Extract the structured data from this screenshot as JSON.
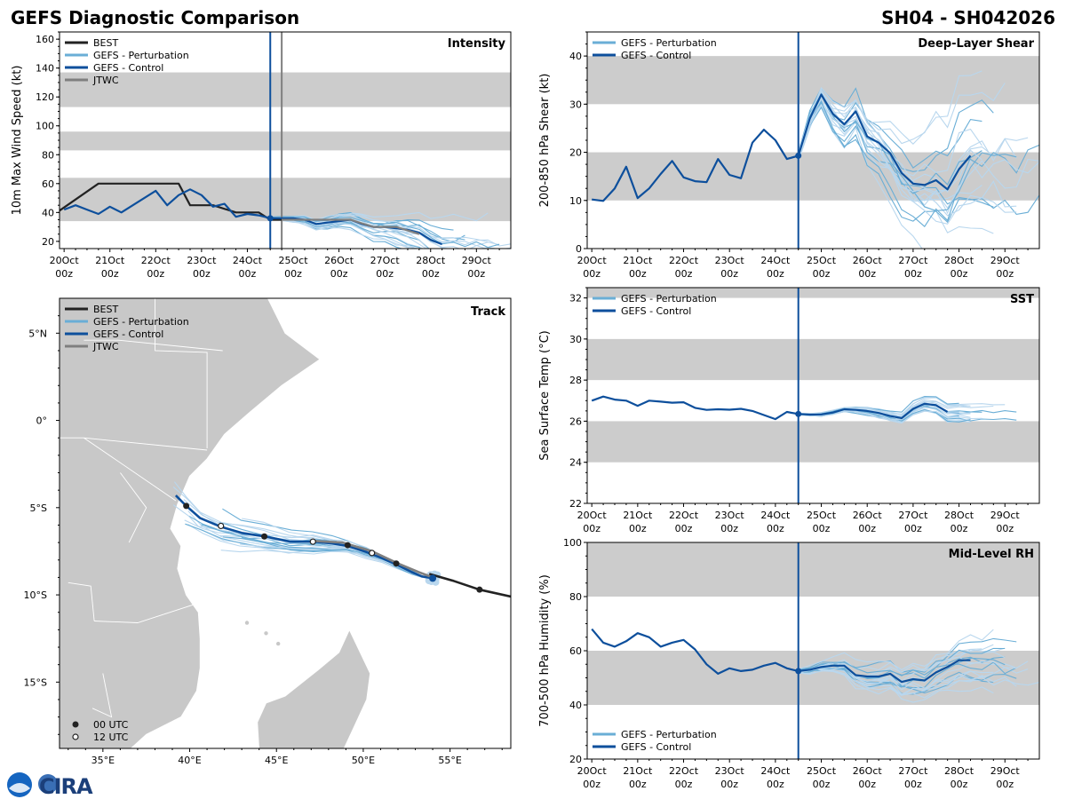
{
  "header": {
    "title": "GEFS Diagnostic Comparison",
    "storm_id": "SH04 - SH042026"
  },
  "logo": {
    "text": "CIRA"
  },
  "colors": {
    "best": "#222222",
    "perturbation": "#6aaed6",
    "perturbation_light": "#b9d7ee",
    "control": "#0d4f9c",
    "jtwc": "#7f7f7f",
    "band": "#cccccc",
    "land": "#c8c8c8",
    "ocean": "#ffffff"
  },
  "time_axis": {
    "day_labels": [
      "20Oct",
      "21Oct",
      "22Oct",
      "23Oct",
      "24Oct",
      "25Oct",
      "26Oct",
      "27Oct",
      "28Oct",
      "29Oct"
    ],
    "hour_label": "00z",
    "init_day": 4.5,
    "jtwc_line_day": 4.75,
    "range_days": [
      -0.1,
      9.75
    ]
  },
  "chart_data": [
    {
      "id": "intensity",
      "type": "line",
      "title": "Intensity",
      "ylabel": "10m Max Wind Speed (kt)",
      "ylim": [
        15,
        165
      ],
      "yticks": [
        20,
        40,
        60,
        80,
        100,
        120,
        140,
        160
      ],
      "bands": [
        [
          34,
          64
        ],
        [
          83,
          96
        ],
        [
          113,
          137
        ]
      ],
      "legend": [
        "BEST",
        "GEFS - Perturbation",
        "GEFS - Control",
        "JTWC"
      ],
      "series": [
        {
          "name": "BEST",
          "days": [
            -0.25,
            0.75,
            1.75,
            2.5,
            2.75,
            3.25,
            3.75,
            4.25,
            4.5,
            4.75
          ],
          "values": [
            38,
            60,
            60,
            60,
            45,
            45,
            40,
            40,
            35,
            35
          ]
        },
        {
          "name": "GEFS - Control",
          "days": [
            0,
            0.25,
            0.5,
            0.75,
            1,
            1.25,
            1.5,
            1.75,
            2,
            2.25,
            2.5,
            2.75,
            3,
            3.25,
            3.5,
            3.75,
            4,
            4.25,
            4.5,
            4.75,
            5,
            5.25,
            5.5,
            5.75,
            6,
            6.25,
            6.5,
            6.75,
            7,
            7.25,
            7.5,
            7.75,
            8,
            8.25
          ],
          "values": [
            42,
            45,
            42,
            39,
            44,
            40,
            45,
            50,
            55,
            45,
            52,
            56,
            52,
            44,
            46,
            37,
            39,
            38,
            36,
            36,
            36,
            35,
            32,
            33,
            34,
            35,
            32,
            30,
            30,
            29,
            28,
            26,
            21,
            18
          ]
        },
        {
          "name": "JTWC",
          "days": [
            4.75,
            5.25,
            5.75,
            6.25,
            6.75,
            7.25,
            7.75
          ],
          "values": [
            35,
            35,
            35,
            35,
            30,
            30,
            25
          ]
        }
      ]
    },
    {
      "id": "shear",
      "type": "line",
      "title": "Deep-Layer Shear",
      "ylabel": "200-850 hPa Shear (kt)",
      "ylim": [
        0,
        45
      ],
      "yticks": [
        0,
        10,
        20,
        30,
        40
      ],
      "bands": [
        [
          10,
          20
        ],
        [
          30,
          40
        ]
      ],
      "legend": [
        "GEFS - Perturbation",
        "GEFS - Control"
      ],
      "series": [
        {
          "name": "GEFS - Control",
          "days": [
            0,
            0.25,
            0.5,
            0.75,
            1,
            1.25,
            1.5,
            1.75,
            2,
            2.25,
            2.5,
            2.75,
            3,
            3.25,
            3.5,
            3.75,
            4,
            4.25,
            4.5,
            4.75,
            5,
            5.25,
            5.5,
            5.75,
            6,
            6.25,
            6.5,
            6.75,
            7,
            7.25,
            7.5,
            7.75,
            8,
            8.25
          ],
          "values": [
            10.2,
            9.9,
            12.5,
            17,
            10.5,
            12.5,
            15.5,
            18.2,
            14.8,
            14,
            13.8,
            18.6,
            15.3,
            14.6,
            22,
            24.7,
            22.5,
            18.6,
            19.3,
            27,
            32,
            28,
            25.8,
            28.5,
            23.3,
            22,
            19.8,
            15.7,
            13.5,
            13.2,
            14.2,
            12.3,
            16.5,
            19.3
          ]
        }
      ]
    },
    {
      "id": "sst",
      "type": "line",
      "title": "SST",
      "ylabel": "Sea Surface Temp (°C)",
      "ylim": [
        22,
        32.5
      ],
      "yticks": [
        22,
        24,
        26,
        28,
        30,
        32
      ],
      "bands": [
        [
          24,
          26
        ],
        [
          28,
          30
        ],
        [
          32,
          34
        ]
      ],
      "legend": [
        "GEFS - Perturbation",
        "GEFS - Control"
      ],
      "series": [
        {
          "name": "GEFS - Control",
          "days": [
            0,
            0.25,
            0.5,
            0.75,
            1,
            1.25,
            1.5,
            1.75,
            2,
            2.25,
            2.5,
            2.75,
            3,
            3.25,
            3.5,
            3.75,
            4,
            4.25,
            4.5,
            4.75,
            5,
            5.25,
            5.5,
            5.75,
            6,
            6.25,
            6.5,
            6.75,
            7,
            7.25,
            7.5,
            7.75
          ],
          "values": [
            27,
            27.2,
            27.05,
            27,
            26.75,
            27,
            26.95,
            26.9,
            26.92,
            26.65,
            26.55,
            26.58,
            26.56,
            26.6,
            26.5,
            26.3,
            26.1,
            26.45,
            26.35,
            26.32,
            26.33,
            26.42,
            26.58,
            26.55,
            26.5,
            26.4,
            26.25,
            26.15,
            26.6,
            26.85,
            26.78,
            26.45
          ]
        }
      ]
    },
    {
      "id": "rh",
      "type": "line",
      "title": "Mid-Level RH",
      "ylabel": "700-500 hPa Humidity (%)",
      "ylim": [
        20,
        100
      ],
      "yticks": [
        20,
        40,
        60,
        80,
        100
      ],
      "bands": [
        [
          40,
          60
        ],
        [
          80,
          100
        ]
      ],
      "legend": [
        "GEFS - Perturbation",
        "GEFS - Control"
      ],
      "series": [
        {
          "name": "GEFS - Control",
          "days": [
            0,
            0.25,
            0.5,
            0.75,
            1,
            1.25,
            1.5,
            1.75,
            2,
            2.25,
            2.5,
            2.75,
            3,
            3.25,
            3.5,
            3.75,
            4,
            4.25,
            4.5,
            4.75,
            5,
            5.25,
            5.5,
            5.75,
            6,
            6.25,
            6.5,
            6.75,
            7,
            7.25,
            7.5,
            7.75,
            8,
            8.25
          ],
          "values": [
            68,
            63,
            61.5,
            63.5,
            66.5,
            65,
            61.5,
            63,
            64,
            60.5,
            55,
            51.5,
            53.5,
            52.5,
            53,
            54.5,
            55.5,
            53.5,
            52.5,
            53,
            54,
            54.5,
            54.5,
            51,
            50.5,
            50.5,
            51.5,
            48.5,
            49.5,
            49,
            52,
            54,
            56.5,
            56.5
          ]
        }
      ]
    },
    {
      "id": "track",
      "type": "scatter",
      "title": "Track",
      "xlim": [
        32.5,
        58.5
      ],
      "ylim": [
        -18.8,
        7
      ],
      "xticks": [
        {
          "value": 35,
          "label": "35°E"
        },
        {
          "value": 40,
          "label": "40°E"
        },
        {
          "value": 45,
          "label": "45°E"
        },
        {
          "value": 50,
          "label": "50°E"
        },
        {
          "value": 55,
          "label": "55°E"
        }
      ],
      "yticks": [
        {
          "value": 5,
          "label": "5°N"
        },
        {
          "value": 0,
          "label": "0°"
        },
        {
          "value": -5,
          "label": "5°S"
        },
        {
          "value": -10,
          "label": "10°S"
        },
        {
          "value": -15,
          "label": "15°S"
        }
      ],
      "legend": [
        "BEST",
        "GEFS - Perturbation",
        "GEFS - Control",
        "JTWC"
      ],
      "marker_legend": [
        "00 UTC",
        "12 UTC"
      ],
      "series": [
        {
          "name": "BEST",
          "lon": [
            53.8,
            55.2,
            56.7,
            58.5
          ],
          "lat": [
            -8.8,
            -9.2,
            -9.7,
            -10.1
          ]
        },
        {
          "name": "GEFS - Control",
          "lon": [
            39.2,
            39.8,
            40.6,
            41.8,
            43,
            44.3,
            45.8,
            47.1,
            48.2,
            49.1,
            50.2,
            51.1,
            52,
            52.8,
            53.4,
            54.0
          ],
          "lat": [
            -4.3,
            -4.9,
            -5.6,
            -6.1,
            -6.45,
            -6.65,
            -6.95,
            -6.95,
            -7.05,
            -7.2,
            -7.55,
            -7.9,
            -8.3,
            -8.7,
            -8.95,
            -9.05
          ]
        },
        {
          "name": "JTWC",
          "lon": [
            47.0,
            48.8,
            50.5,
            52.0,
            53.2,
            54.0
          ],
          "lat": [
            -6.9,
            -7.0,
            -7.5,
            -8.2,
            -8.7,
            -9.0
          ]
        },
        {
          "name": "00 UTC",
          "lon": [
            39.8,
            44.3,
            49.1,
            51.9,
            56.7
          ],
          "lat": [
            -4.9,
            -6.65,
            -7.15,
            -8.2,
            -9.7
          ]
        },
        {
          "name": "12 UTC",
          "lon": [
            41.8,
            47.1,
            50.5
          ],
          "lat": [
            -6.05,
            -6.95,
            -7.6
          ]
        }
      ]
    }
  ]
}
